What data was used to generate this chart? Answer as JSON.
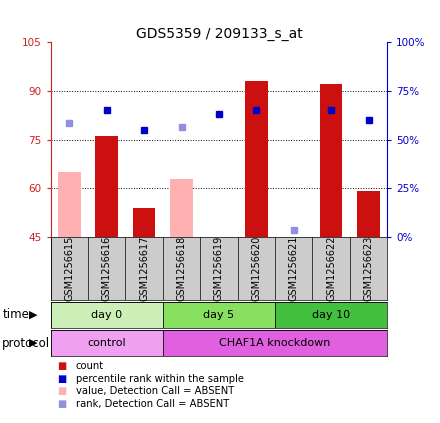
{
  "title": "GDS5359 / 209133_s_at",
  "samples": [
    "GSM1256615",
    "GSM1256616",
    "GSM1256617",
    "GSM1256618",
    "GSM1256619",
    "GSM1256620",
    "GSM1256621",
    "GSM1256622",
    "GSM1256623"
  ],
  "ylim_left": [
    45,
    105
  ],
  "ylim_right": [
    0,
    100
  ],
  "yticks_left": [
    45,
    60,
    75,
    90,
    105
  ],
  "ytick_labels_left": [
    "45",
    "60",
    "75",
    "90",
    "105"
  ],
  "yticks_right": [
    0,
    25,
    50,
    75,
    100
  ],
  "ytick_labels_right": [
    "0%",
    "25%",
    "50%",
    "75%",
    "100%"
  ],
  "red_bars": [
    null,
    76,
    54,
    null,
    45,
    93,
    null,
    92,
    59
  ],
  "pink_bars": [
    65,
    null,
    null,
    63,
    null,
    null,
    null,
    null,
    null
  ],
  "blue_squares_left": [
    null,
    84,
    78,
    null,
    83,
    84,
    null,
    84,
    81
  ],
  "lightblue_squares_left": [
    80,
    null,
    null,
    79,
    null,
    null,
    47,
    null,
    null
  ],
  "time_groups": [
    {
      "label": "day 0",
      "start": 0,
      "end": 3,
      "color": "#ccf0b8"
    },
    {
      "label": "day 5",
      "start": 3,
      "end": 6,
      "color": "#88e060"
    },
    {
      "label": "day 10",
      "start": 6,
      "end": 9,
      "color": "#44c040"
    }
  ],
  "protocol_groups": [
    {
      "label": "control",
      "start": 0,
      "end": 3,
      "color": "#f0a0f0"
    },
    {
      "label": "CHAF1A knockdown",
      "start": 3,
      "end": 9,
      "color": "#e060e0"
    }
  ],
  "grid_yticks": [
    60,
    75,
    90
  ],
  "bar_width": 0.6,
  "red_color": "#cc1010",
  "pink_color": "#ffb0b0",
  "blue_color": "#0000cc",
  "lightblue_color": "#9090dd",
  "label_color_left": "#cc2020",
  "label_color_right": "#0000cc",
  "title_fontsize": 10,
  "tick_fontsize": 7.5,
  "sample_fontsize": 7,
  "legend_items": [
    {
      "color": "#cc1010",
      "label": "count"
    },
    {
      "color": "#0000cc",
      "label": "percentile rank within the sample"
    },
    {
      "color": "#ffb0b0",
      "label": "value, Detection Call = ABSENT"
    },
    {
      "color": "#9090dd",
      "label": "rank, Detection Call = ABSENT"
    }
  ]
}
